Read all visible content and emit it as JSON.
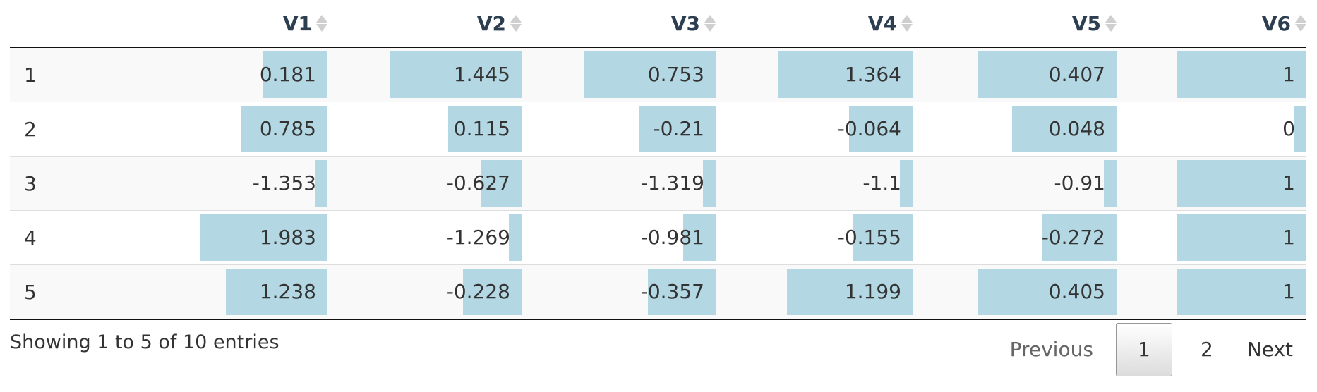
{
  "table": {
    "columns": [
      "",
      "V1",
      "V2",
      "V3",
      "V4",
      "V5",
      "V6"
    ],
    "rows": [
      [
        "1",
        "0.181",
        "1.445",
        "0.753",
        "1.364",
        "0.407",
        "1"
      ],
      [
        "2",
        "0.785",
        "0.115",
        "-0.21",
        "-0.064",
        "0.048",
        "0"
      ],
      [
        "3",
        "-1.353",
        "-0.627",
        "-1.319",
        "-1.1",
        "-0.91",
        "1"
      ],
      [
        "4",
        "1.983",
        "-1.269",
        "-0.981",
        "-0.155",
        "-0.272",
        "1"
      ],
      [
        "5",
        "1.238",
        "-0.228",
        "-0.357",
        "1.199",
        "0.405",
        "1"
      ]
    ],
    "bar_color": "#b3d7e3",
    "bar_value_ranges": {
      "V1": [
        -1.353,
        1.983
      ],
      "V2": [
        -1.269,
        1.445
      ],
      "V3": [
        -1.319,
        0.753
      ],
      "V4": [
        -1.1,
        1.364
      ],
      "V5": [
        -0.91,
        0.407
      ],
      "V6": [
        0,
        1
      ]
    }
  },
  "footer": {
    "info": "Showing 1 to 5 of 10 entries",
    "previous": "Previous",
    "pages": [
      "1",
      "2"
    ],
    "current_page": "1",
    "next": "Next"
  }
}
